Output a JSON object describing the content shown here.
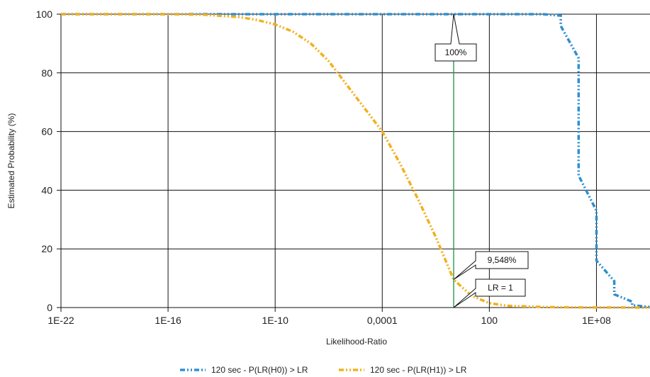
{
  "chart_data": {
    "type": "line",
    "title": "",
    "xlabel": "Likelihood-Ratio",
    "ylabel": "Estimated Probability (%)",
    "x_scale": "log10",
    "x_tick_labels": [
      "1E-22",
      "1E-16",
      "1E-10",
      "0,0001",
      "100",
      "1E+08"
    ],
    "y_tick_labels": [
      "0",
      "20",
      "40",
      "60",
      "80",
      "100"
    ],
    "xlim": [
      "1E-22",
      "1E+11"
    ],
    "ylim": [
      0,
      100
    ],
    "grid": true,
    "legend_position": "bottom",
    "vertical_line": {
      "x": "1",
      "color": "#2e9a4a"
    },
    "annotations": [
      {
        "text": "100%",
        "x": "1",
        "y": 100
      },
      {
        "text": "9,548%",
        "x": "1",
        "y": 9.548
      },
      {
        "text": "LR = 1",
        "x": "1",
        "y": 0
      }
    ],
    "series": [
      {
        "name": "120 sec - P(LR(H0)) > LR",
        "color": "#2f8fd0",
        "x": [
          "1E-22",
          "1E-16",
          "1E-10",
          "0,0001",
          "1",
          "100",
          "1E+05",
          "1E+06",
          "1E+06",
          "1E+07",
          "1E+07",
          "1E+07",
          "1E+07",
          "1E+08",
          "1E+08",
          "1E+08",
          "1E+09",
          "1E+09",
          "1E+10",
          "1E+10",
          "1E+11"
        ],
        "values": [
          100,
          100,
          100,
          100,
          100,
          100,
          100,
          99.5,
          96,
          85,
          72,
          58,
          45,
          33,
          24,
          16,
          9,
          4.5,
          2,
          0.8,
          0.2
        ]
      },
      {
        "name": "120 sec - P(LR(H1)) > LR",
        "color": "#f2b01e",
        "x": [
          "1E-22",
          "1E-16",
          "1E-14",
          "1E-12",
          "1E-11",
          "1E-10",
          "1E-09",
          "1E-08",
          "1E-07",
          "1E-06",
          "1E-05",
          "0,0001",
          "0,001",
          "0,01",
          "0,1",
          "1",
          "10",
          "100",
          "1000",
          "1E+05",
          "1E+07",
          "1E+11"
        ],
        "values": [
          100,
          100,
          99.8,
          99,
          98,
          96.5,
          94,
          90,
          84,
          76,
          68,
          60,
          49,
          37,
          24,
          9.548,
          4,
          1.5,
          0.6,
          0.2,
          0.05,
          0
        ]
      }
    ]
  }
}
